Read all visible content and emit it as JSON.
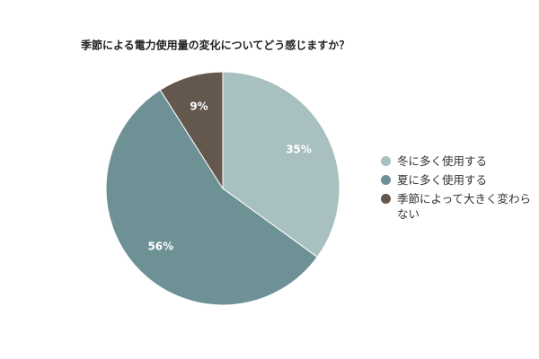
{
  "chart_data": {
    "type": "pie",
    "title": "季節による電力使用量の変化についてどう感じますか？",
    "categories": [
      "冬に多く使用する",
      "夏に多く使用する",
      "季節によって大きく変わらない"
    ],
    "values": [
      35,
      56,
      9
    ],
    "value_labels": [
      "35%",
      "56%",
      "9%"
    ],
    "colors": [
      "#a8c0c0",
      "#6e9196",
      "#64574e"
    ],
    "legend": "right"
  }
}
